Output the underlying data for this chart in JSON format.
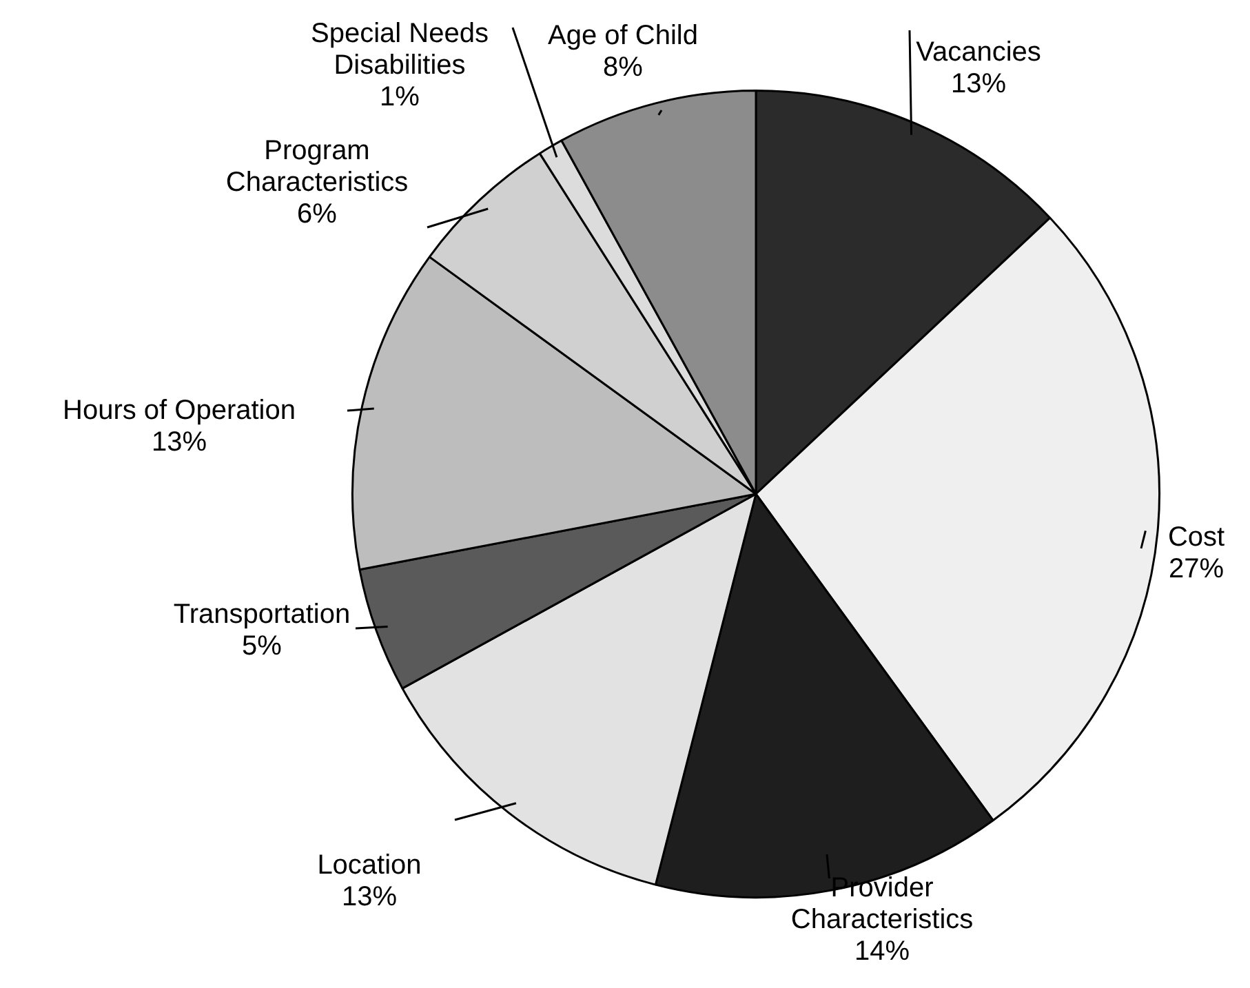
{
  "chart_data": {
    "type": "pie",
    "categories": [
      "Vacancies",
      "Cost",
      "Provider\nCharacteristics",
      "Location",
      "Transportation",
      "Hours of Operation",
      "Program\nCharacteristics",
      "Special Needs\nDisabilities",
      "Age of Child"
    ],
    "values": [
      13,
      27,
      14,
      13,
      5,
      13,
      6,
      1,
      8
    ],
    "value_labels": [
      "13%",
      "27%",
      "14%",
      "13%",
      "5%",
      "13%",
      "6%",
      "1%",
      "8%"
    ],
    "colors": [
      "#2b2b2b",
      "#efefef",
      "#1e1e1e",
      "#e2e2e2",
      "#5a5a5a",
      "#bdbdbd",
      "#d0d0d0",
      "#dcdcdc",
      "#8c8c8c"
    ]
  }
}
